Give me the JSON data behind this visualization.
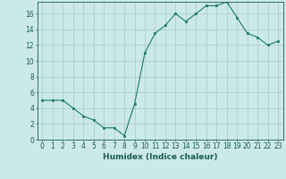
{
  "x": [
    0,
    1,
    2,
    3,
    4,
    5,
    6,
    7,
    8,
    9,
    10,
    11,
    12,
    13,
    14,
    15,
    16,
    17,
    18,
    19,
    20,
    21,
    22,
    23
  ],
  "y": [
    5,
    5,
    5,
    4,
    3,
    2.5,
    1.5,
    1.5,
    0.5,
    4.5,
    11,
    13.5,
    14.5,
    16,
    15,
    16,
    17,
    17,
    17.5,
    15.5,
    13.5,
    13,
    12,
    12.5
  ],
  "line_color": "#1a7a6e",
  "marker_color": "#1a7a6e",
  "bg_color": "#cce9e9",
  "grid_color": "#b0cccc",
  "xlabel": "Humidex (Indice chaleur)",
  "ylim": [
    0,
    17.5
  ],
  "xlim": [
    -0.5,
    23.5
  ],
  "yticks": [
    0,
    2,
    4,
    6,
    8,
    10,
    12,
    14,
    16
  ],
  "xticks": [
    0,
    1,
    2,
    3,
    4,
    5,
    6,
    7,
    8,
    9,
    10,
    11,
    12,
    13,
    14,
    15,
    16,
    17,
    18,
    19,
    20,
    21,
    22,
    23
  ],
  "xtick_labels": [
    "0",
    "1",
    "2",
    "3",
    "4",
    "5",
    "6",
    "7",
    "8",
    "9",
    "10",
    "11",
    "12",
    "13",
    "14",
    "15",
    "16",
    "17",
    "18",
    "19",
    "20",
    "21",
    "22",
    "23"
  ],
  "label_color": "#1a5c52",
  "tick_color": "#1a5c52",
  "font_size_label": 6.5,
  "font_size_tick": 5.5
}
